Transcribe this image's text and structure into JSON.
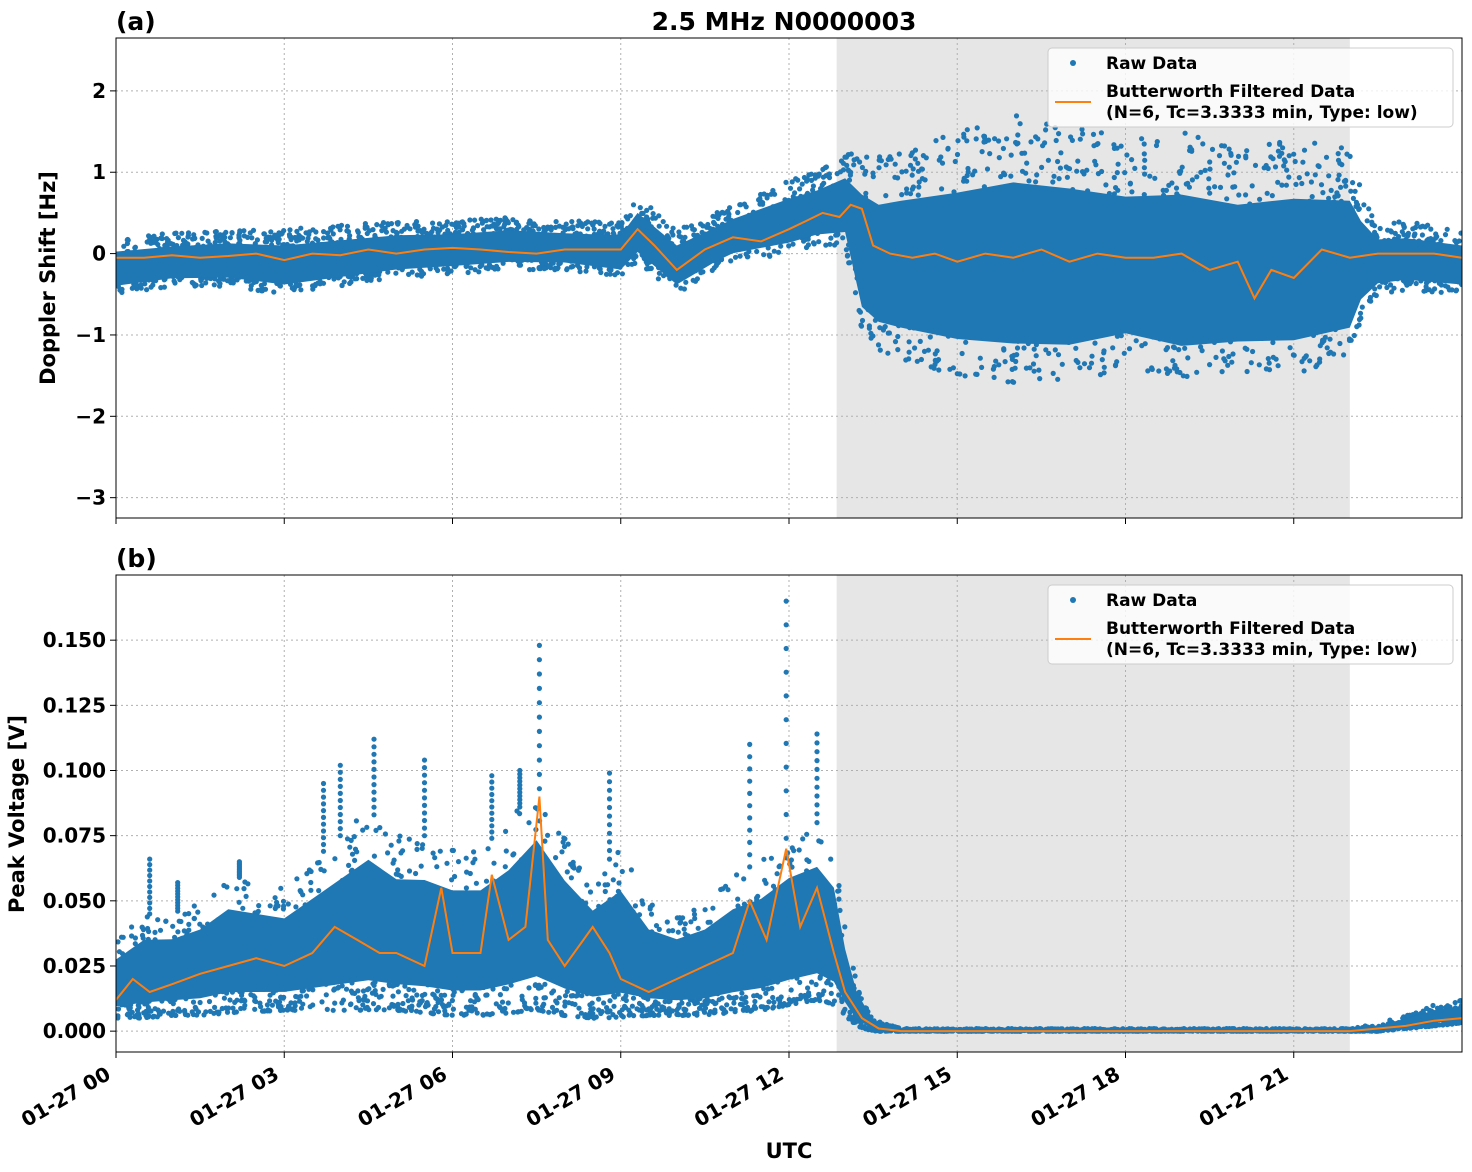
{
  "figure": {
    "title": "2.5 MHz N0000003",
    "xlabel": "UTC",
    "x_tick_labels": [
      "01-27 00",
      "01-27 03",
      "01-27 06",
      "01-27 09",
      "01-27 12",
      "01-27 15",
      "01-27 18",
      "01-27 21"
    ]
  },
  "colors": {
    "raw": "#1f77b4",
    "filtered": "#ff7f0e",
    "shade": "#e6e6e6",
    "grid": "#b0b0b0"
  },
  "chart_data": [
    {
      "type": "scatter",
      "panel_label": "(a)",
      "title": "2.5 MHz N0000003",
      "xlabel": "UTC",
      "ylabel": "Doppler Shift [Hz]",
      "x_unit": "hours since 01-27 00 UTC",
      "xlim": [
        0,
        24
      ],
      "ylim": [
        -3.25,
        2.65
      ],
      "x_ticks": [
        0,
        3,
        6,
        9,
        12,
        15,
        18,
        21
      ],
      "y_ticks": [
        2,
        1,
        0,
        -1,
        -2,
        -3
      ],
      "y_tick_labels": [
        "2",
        "1",
        "0",
        "−1",
        "−2",
        "−3"
      ],
      "grid": true,
      "legend_position": "top-right",
      "shaded_interval": [
        12.85,
        22.0
      ],
      "series": [
        {
          "name": "Raw Data",
          "kind": "points",
          "note": "dense point cloud; band bounds sampled along x",
          "x": [
            0,
            1,
            2,
            3,
            4,
            5,
            6,
            7,
            8,
            9,
            9.3,
            10,
            10.7,
            11,
            12,
            12.5,
            13,
            13.3,
            13.6,
            14,
            15,
            16,
            17,
            18,
            19,
            20,
            21,
            22,
            22.2,
            22.5,
            23,
            24
          ],
          "upper": [
            0.2,
            0.25,
            0.3,
            0.3,
            0.35,
            0.4,
            0.4,
            0.45,
            0.4,
            0.4,
            0.7,
            0.3,
            0.5,
            0.6,
            0.9,
            1.0,
            1.2,
            1.3,
            1.2,
            1.3,
            1.5,
            1.7,
            1.6,
            1.4,
            1.5,
            1.3,
            1.4,
            1.3,
            0.8,
            0.4,
            0.4,
            0.3
          ],
          "lower": [
            -0.5,
            -0.4,
            -0.4,
            -0.5,
            -0.4,
            -0.3,
            -0.25,
            -0.2,
            -0.2,
            -0.3,
            -0.1,
            -0.5,
            -0.2,
            -0.1,
            0.0,
            0.1,
            0.1,
            -1.0,
            -1.2,
            -1.3,
            -1.5,
            -1.6,
            -1.6,
            -1.4,
            -1.6,
            -1.5,
            -1.5,
            -1.3,
            -0.8,
            -0.5,
            -0.45,
            -0.5
          ]
        },
        {
          "name": "Butterworth Filtered Data\n(N=6, Tc=3.3333 min, Type: low)",
          "legend_lines": [
            "Butterworth Filtered Data",
            "(N=6, Tc=3.3333 min, Type: low)"
          ],
          "kind": "line",
          "x": [
            0,
            0.5,
            1,
            1.5,
            2,
            2.5,
            3,
            3.5,
            4,
            4.5,
            5,
            5.5,
            6,
            6.5,
            7,
            7.5,
            8,
            8.5,
            9,
            9.3,
            9.6,
            10,
            10.5,
            11,
            11.5,
            12,
            12.3,
            12.6,
            12.9,
            13.1,
            13.3,
            13.5,
            13.8,
            14.2,
            14.6,
            15,
            15.5,
            16,
            16.5,
            17,
            17.5,
            18,
            18.5,
            19,
            19.5,
            20,
            20.3,
            20.6,
            21,
            21.5,
            22,
            22.5,
            23,
            23.5,
            24
          ],
          "y": [
            -0.05,
            -0.05,
            -0.02,
            -0.05,
            -0.03,
            0.0,
            -0.08,
            0.0,
            -0.02,
            0.05,
            0.0,
            0.05,
            0.07,
            0.05,
            0.02,
            0.0,
            0.05,
            0.05,
            0.05,
            0.3,
            0.1,
            -0.2,
            0.05,
            0.2,
            0.15,
            0.3,
            0.4,
            0.5,
            0.45,
            0.6,
            0.55,
            0.1,
            0.0,
            -0.05,
            0.0,
            -0.1,
            0.0,
            -0.05,
            0.05,
            -0.1,
            0.0,
            -0.05,
            -0.05,
            0.0,
            -0.2,
            -0.1,
            -0.55,
            -0.2,
            -0.3,
            0.05,
            -0.05,
            0.0,
            0.0,
            0.0,
            -0.05
          ]
        }
      ]
    },
    {
      "type": "scatter",
      "panel_label": "(b)",
      "title": "",
      "xlabel": "UTC",
      "ylabel": "Peak Voltage [V]",
      "x_unit": "hours since 01-27 00 UTC",
      "xlim": [
        0,
        24
      ],
      "ylim": [
        -0.008,
        0.175
      ],
      "x_ticks": [
        0,
        3,
        6,
        9,
        12,
        15,
        18,
        21
      ],
      "y_ticks": [
        0.15,
        0.125,
        0.1,
        0.075,
        0.05,
        0.025,
        0.0
      ],
      "y_tick_labels": [
        "0.150",
        "0.125",
        "0.100",
        "0.075",
        "0.050",
        "0.025",
        "0.000"
      ],
      "grid": true,
      "legend_position": "top-right",
      "shaded_interval": [
        12.85,
        22.0
      ],
      "series": [
        {
          "name": "Raw Data",
          "kind": "points",
          "note": "dense point cloud; band bounds sampled along x",
          "x": [
            0,
            0.5,
            1,
            1.5,
            2,
            3,
            4,
            4.5,
            5,
            5.5,
            6,
            6.5,
            7,
            7.5,
            8,
            8.5,
            9,
            9.5,
            10,
            10.5,
            11,
            11.5,
            12,
            12.5,
            12.8,
            13.0,
            13.2,
            13.5,
            14,
            16,
            18,
            20,
            22,
            22.5,
            23,
            23.5,
            24
          ],
          "upper": [
            0.035,
            0.045,
            0.045,
            0.05,
            0.06,
            0.055,
            0.075,
            0.085,
            0.075,
            0.075,
            0.07,
            0.07,
            0.08,
            0.095,
            0.075,
            0.06,
            0.07,
            0.05,
            0.045,
            0.05,
            0.06,
            0.065,
            0.075,
            0.08,
            0.07,
            0.04,
            0.02,
            0.005,
            0.001,
            0.001,
            0.001,
            0.001,
            0.001,
            0.003,
            0.006,
            0.01,
            0.012
          ],
          "lower": [
            0.005,
            0.005,
            0.006,
            0.006,
            0.007,
            0.008,
            0.008,
            0.008,
            0.008,
            0.007,
            0.006,
            0.006,
            0.007,
            0.008,
            0.006,
            0.005,
            0.005,
            0.006,
            0.006,
            0.006,
            0.007,
            0.008,
            0.01,
            0.012,
            0.01,
            0.006,
            0.002,
            0.0,
            0.0,
            0.0,
            0.0,
            0.0,
            0.0,
            0.0,
            0.001,
            0.002,
            0.003
          ],
          "spikes": [
            {
              "x": 0.6,
              "y": 0.066
            },
            {
              "x": 1.1,
              "y": 0.057
            },
            {
              "x": 2.2,
              "y": 0.065
            },
            {
              "x": 3.7,
              "y": 0.095
            },
            {
              "x": 4.0,
              "y": 0.102
            },
            {
              "x": 4.6,
              "y": 0.112
            },
            {
              "x": 5.5,
              "y": 0.104
            },
            {
              "x": 6.7,
              "y": 0.098
            },
            {
              "x": 7.2,
              "y": 0.1
            },
            {
              "x": 7.55,
              "y": 0.148
            },
            {
              "x": 8.8,
              "y": 0.099
            },
            {
              "x": 11.3,
              "y": 0.11
            },
            {
              "x": 11.95,
              "y": 0.165
            },
            {
              "x": 12.5,
              "y": 0.114
            }
          ]
        },
        {
          "name": "Butterworth Filtered Data\n(N=6, Tc=3.3333 min, Type: low)",
          "legend_lines": [
            "Butterworth Filtered Data",
            "(N=6, Tc=3.3333 min, Type: low)"
          ],
          "kind": "line",
          "x": [
            0,
            0.3,
            0.6,
            1,
            1.5,
            2,
            2.5,
            3,
            3.5,
            3.9,
            4.3,
            4.7,
            5,
            5.5,
            5.8,
            6,
            6.5,
            6.7,
            7,
            7.3,
            7.55,
            7.7,
            8,
            8.5,
            8.8,
            9,
            9.5,
            10,
            10.5,
            11,
            11.3,
            11.6,
            11.95,
            12.2,
            12.5,
            12.8,
            13.0,
            13.3,
            13.6,
            14,
            18,
            22,
            22.5,
            23,
            23.5,
            24
          ],
          "y": [
            0.012,
            0.02,
            0.015,
            0.018,
            0.022,
            0.025,
            0.028,
            0.025,
            0.03,
            0.04,
            0.035,
            0.03,
            0.03,
            0.025,
            0.055,
            0.03,
            0.03,
            0.06,
            0.035,
            0.04,
            0.09,
            0.035,
            0.025,
            0.04,
            0.03,
            0.02,
            0.015,
            0.02,
            0.025,
            0.03,
            0.05,
            0.035,
            0.07,
            0.04,
            0.055,
            0.03,
            0.015,
            0.005,
            0.001,
            0.0,
            0.0,
            0.0,
            0.001,
            0.002,
            0.004,
            0.005
          ]
        }
      ]
    }
  ]
}
